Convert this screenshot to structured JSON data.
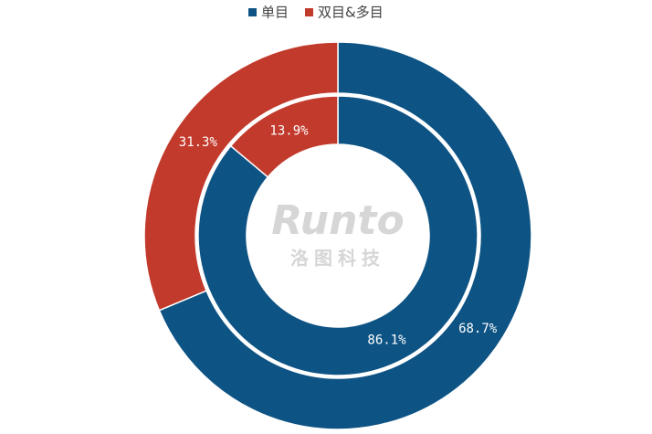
{
  "chart_data": {
    "type": "donut",
    "categories": [
      "单目",
      "双目&多目"
    ],
    "colors": [
      "#0d5384",
      "#c23a2c"
    ],
    "series": [
      {
        "values": [
          68.7,
          31.3
        ],
        "value_labels": [
          "68.7%",
          "31.3%"
        ]
      },
      {
        "values": [
          86.1,
          13.9
        ],
        "value_labels": [
          "86.1%",
          "13.9%"
        ]
      }
    ],
    "legend": "top",
    "watermark": [
      "Runto",
      "洛图科技"
    ]
  }
}
